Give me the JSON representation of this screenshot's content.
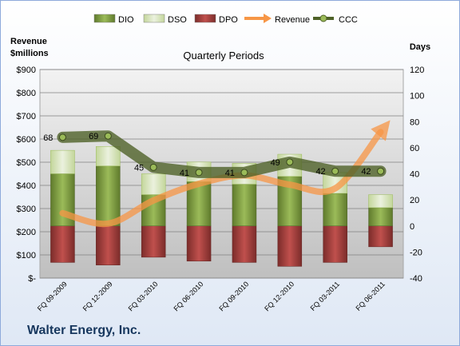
{
  "chart_data": {
    "type": "bar",
    "title": "Quarterly Periods",
    "y_left_label": [
      "Revenue",
      "$millions"
    ],
    "y_right_label": "Days",
    "company": "Walter Energy, Inc.",
    "categories": [
      "FQ 09-2009",
      "FQ 12-2009",
      "FQ 03-2010",
      "FQ 06-2010",
      "FQ 09-2010",
      "FQ 12-2010",
      "FQ 03-2011",
      "FQ 06-2011"
    ],
    "y_left_ticks": [
      "$-",
      "$100",
      "$200",
      "$300",
      "$400",
      "$500",
      "$600",
      "$700",
      "$800",
      "$900"
    ],
    "y_left_range": [
      0,
      900
    ],
    "y_right_ticks": [
      "-40",
      "-20",
      "0",
      "20",
      "40",
      "60",
      "80",
      "100",
      "120"
    ],
    "y_right_range": [
      -40,
      120
    ],
    "legend": [
      {
        "name": "DIO",
        "kind": "box",
        "color": "#77933c"
      },
      {
        "name": "DSO",
        "kind": "box",
        "color": "#d7e4bd"
      },
      {
        "name": "DPO",
        "kind": "box",
        "color": "#953735"
      },
      {
        "name": "Revenue",
        "kind": "arrow",
        "color": "#f79646"
      },
      {
        "name": "CCC",
        "kind": "dotline",
        "color": "#4f6228"
      }
    ],
    "legend_position": "top",
    "series": [
      {
        "name": "DIO",
        "axis": "right",
        "values": [
          40,
          46,
          24,
          34,
          32,
          38,
          25,
          14
        ]
      },
      {
        "name": "DSO",
        "axis": "right",
        "values": [
          18,
          15,
          16,
          15,
          16,
          17,
          16,
          10
        ]
      },
      {
        "name": "DPO",
        "axis": "right",
        "values": [
          -28,
          -30,
          -24,
          -27,
          -28,
          -31,
          -28,
          -16
        ]
      },
      {
        "name": "Revenue",
        "axis": "left",
        "values": [
          280,
          235,
          335,
          407,
          443,
          403,
          387,
          630
        ]
      },
      {
        "name": "CCC",
        "axis": "right",
        "values": [
          68,
          69,
          45,
          41,
          41,
          49,
          42,
          42
        ],
        "labels": [
          "68",
          "69",
          "45",
          "41",
          "41",
          "49",
          "42",
          "42"
        ]
      }
    ]
  }
}
